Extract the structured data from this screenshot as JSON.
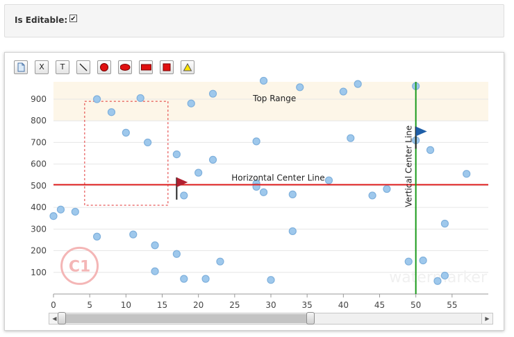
{
  "settings": {
    "editable_label": "Is Editable:",
    "editable_checked": true
  },
  "toolbar": {
    "tools": [
      {
        "id": "file",
        "icon": "file-icon",
        "label": ""
      },
      {
        "id": "delete",
        "icon": "delete-icon",
        "label": "X"
      },
      {
        "id": "text",
        "icon": "text-icon",
        "label": "T"
      },
      {
        "id": "line",
        "icon": "line-icon",
        "label": ""
      },
      {
        "id": "circle",
        "icon": "circle-icon",
        "label": ""
      },
      {
        "id": "ellipse",
        "icon": "ellipse-icon",
        "label": ""
      },
      {
        "id": "rectangle",
        "icon": "rectangle-icon",
        "label": ""
      },
      {
        "id": "square",
        "icon": "square-icon",
        "label": ""
      },
      {
        "id": "triangle",
        "icon": "triangle-icon",
        "label": ""
      }
    ]
  },
  "chart_data": {
    "type": "scatter",
    "title": "",
    "xlabel": "",
    "ylabel": "",
    "xlim": [
      0,
      60
    ],
    "ylim": [
      0,
      980
    ],
    "x_ticks": [
      0,
      5,
      10,
      15,
      20,
      25,
      30,
      35,
      40,
      45,
      50,
      55
    ],
    "y_ticks": [
      100,
      200,
      300,
      400,
      500,
      600,
      700,
      800,
      900
    ],
    "grid": true,
    "colors": {
      "point": "#9ec8ec",
      "point_stroke": "#7fb0dc",
      "center_line_h": "#e02020",
      "center_line_v": "#1a9a1a",
      "band": "#fdf6e8",
      "flag_red": "#b02030",
      "flag_blue": "#1f5fa8"
    },
    "points": [
      {
        "x": 0,
        "y": 360
      },
      {
        "x": 1,
        "y": 390
      },
      {
        "x": 3,
        "y": 380
      },
      {
        "x": 6,
        "y": 265
      },
      {
        "x": 6,
        "y": 900
      },
      {
        "x": 8,
        "y": 840
      },
      {
        "x": 10,
        "y": 745
      },
      {
        "x": 11,
        "y": 275
      },
      {
        "x": 12,
        "y": 905
      },
      {
        "x": 13,
        "y": 700
      },
      {
        "x": 14,
        "y": 225
      },
      {
        "x": 14,
        "y": 105
      },
      {
        "x": 17,
        "y": 645
      },
      {
        "x": 17,
        "y": 185
      },
      {
        "x": 18,
        "y": 70
      },
      {
        "x": 18,
        "y": 455
      },
      {
        "x": 19,
        "y": 880
      },
      {
        "x": 20,
        "y": 560
      },
      {
        "x": 21,
        "y": 70
      },
      {
        "x": 22,
        "y": 620
      },
      {
        "x": 22,
        "y": 925
      },
      {
        "x": 23,
        "y": 150
      },
      {
        "x": 28,
        "y": 705
      },
      {
        "x": 28,
        "y": 510
      },
      {
        "x": 28,
        "y": 495
      },
      {
        "x": 29,
        "y": 470
      },
      {
        "x": 29,
        "y": 985
      },
      {
        "x": 30,
        "y": 65
      },
      {
        "x": 33,
        "y": 460
      },
      {
        "x": 33,
        "y": 290
      },
      {
        "x": 34,
        "y": 955
      },
      {
        "x": 38,
        "y": 525
      },
      {
        "x": 40,
        "y": 935
      },
      {
        "x": 41,
        "y": 720
      },
      {
        "x": 42,
        "y": 970
      },
      {
        "x": 44,
        "y": 455
      },
      {
        "x": 46,
        "y": 485
      },
      {
        "x": 49,
        "y": 150
      },
      {
        "x": 50,
        "y": 960
      },
      {
        "x": 50,
        "y": 710
      },
      {
        "x": 51,
        "y": 155
      },
      {
        "x": 52,
        "y": 665
      },
      {
        "x": 53,
        "y": 60
      },
      {
        "x": 54,
        "y": 85
      },
      {
        "x": 54,
        "y": 325
      },
      {
        "x": 57,
        "y": 555
      }
    ],
    "annotations": {
      "top_range": {
        "label": "Top Range",
        "y_from": 800,
        "y_to": 1000
      },
      "horizontal_center": {
        "label": "Horizontal Center Line",
        "y": 505
      },
      "vertical_center": {
        "label": "Vertical Center Line",
        "x": 50
      },
      "selection": {
        "x_from": 4.3,
        "x_to": 15.8,
        "y_from": 410,
        "y_to": 890
      },
      "flags": [
        {
          "x": 17,
          "y": 500,
          "color": "red"
        },
        {
          "x": 50,
          "y": 735,
          "color": "blue"
        }
      ],
      "logo_text": "C1",
      "watermark_text": "watermarker"
    }
  },
  "scrollbar": {
    "left_arrow": "◀",
    "right_arrow": "▶"
  }
}
